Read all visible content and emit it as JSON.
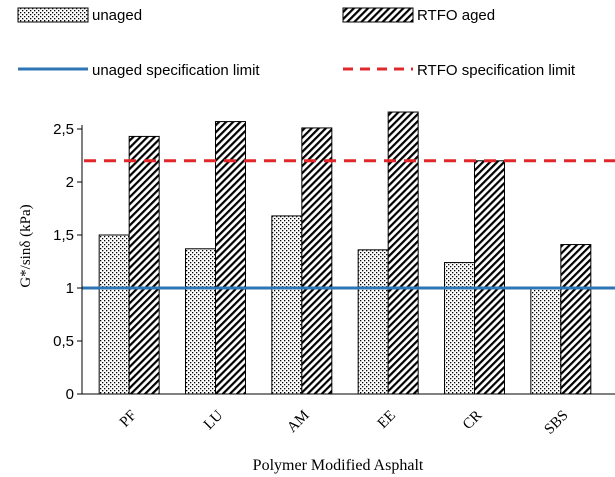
{
  "chart_data": {
    "type": "bar",
    "categories": [
      "PF",
      "LU",
      "AM",
      "EE",
      "CR",
      "SBS"
    ],
    "series": [
      {
        "name": "unaged",
        "values": [
          1.5,
          1.37,
          1.68,
          1.36,
          1.24,
          1.0
        ],
        "pattern": "dots"
      },
      {
        "name": "RTFO aged",
        "values": [
          2.43,
          2.57,
          2.51,
          2.66,
          2.2,
          1.41
        ],
        "pattern": "diagonal-hatch"
      }
    ],
    "reference_lines": [
      {
        "name": "unaged specification limit",
        "value": 1.0,
        "color": "#2e75b6",
        "style": "solid"
      },
      {
        "name": "RTFO specification limit",
        "value": 2.2,
        "color": "#e0282b",
        "style": "dashed"
      }
    ],
    "xlabel": "Polymer Modified Asphalt",
    "ylabel": "G*/sinδ (kPa)",
    "ylim": [
      0,
      2.5
    ],
    "yticks": [
      "0",
      "0,5",
      "1",
      "1,5",
      "2",
      "2,5"
    ],
    "grid": false,
    "legend_position": "top"
  }
}
